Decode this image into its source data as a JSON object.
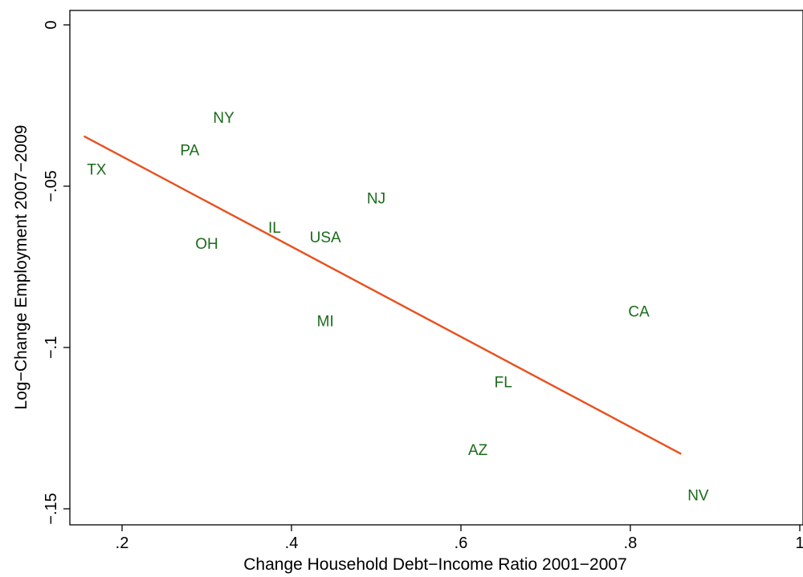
{
  "colors": {
    "point_labels": "#1a6b1a",
    "fit_line": "#e8501e",
    "axes": "#000000",
    "background": "#ffffff"
  },
  "chart_data": {
    "type": "scatter",
    "title": "",
    "xlabel": "Change Household Debt−Income Ratio 2001−2007",
    "ylabel": "Log−Change Employment 2007−2009",
    "xlim": [
      0.14,
      1.0
    ],
    "ylim": [
      -0.155,
      0.001
    ],
    "xticks": [
      {
        "value": 0.2,
        "label": ".2"
      },
      {
        "value": 0.4,
        "label": ".4"
      },
      {
        "value": 0.6,
        "label": ".6"
      },
      {
        "value": 0.8,
        "label": ".8"
      },
      {
        "value": 1.0,
        "label": "1"
      }
    ],
    "yticks": [
      {
        "value": 0,
        "label": "0"
      },
      {
        "value": -0.05,
        "label": "−.05"
      },
      {
        "value": -0.1,
        "label": "−.1"
      },
      {
        "value": -0.15,
        "label": "−.15"
      }
    ],
    "grid": false,
    "legend": "none",
    "points": [
      {
        "label": "TX",
        "x": 0.17,
        "y": -0.045
      },
      {
        "label": "PA",
        "x": 0.28,
        "y": -0.039
      },
      {
        "label": "NY",
        "x": 0.32,
        "y": -0.029
      },
      {
        "label": "OH",
        "x": 0.3,
        "y": -0.068
      },
      {
        "label": "IL",
        "x": 0.38,
        "y": -0.063
      },
      {
        "label": "USA",
        "x": 0.44,
        "y": -0.066
      },
      {
        "label": "NJ",
        "x": 0.5,
        "y": -0.054
      },
      {
        "label": "MI",
        "x": 0.44,
        "y": -0.092
      },
      {
        "label": "CA",
        "x": 0.81,
        "y": -0.089
      },
      {
        "label": "FL",
        "x": 0.65,
        "y": -0.111
      },
      {
        "label": "AZ",
        "x": 0.62,
        "y": -0.132
      },
      {
        "label": "NV",
        "x": 0.88,
        "y": -0.146
      }
    ],
    "fit_line": {
      "x": [
        0.155,
        0.86
      ],
      "y": [
        -0.0345,
        -0.133
      ]
    }
  }
}
